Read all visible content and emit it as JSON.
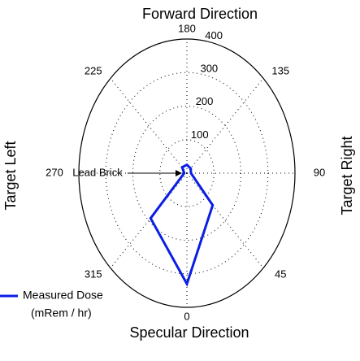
{
  "chart_data": {
    "type": "polar",
    "title": "Forward Direction",
    "bottom_label": "Specular Direction",
    "left_label": "Target Left",
    "right_label": "Target Right",
    "annotation": "Lead Brick",
    "x": [
      0,
      45,
      90,
      135,
      180,
      225,
      270,
      315
    ],
    "xticks": [
      0,
      45,
      90,
      135,
      180,
      225,
      270,
      315
    ],
    "ylim": [
      0,
      400
    ],
    "yticks": [
      100,
      200,
      300,
      400
    ],
    "grid": true,
    "legend": "bottom-left",
    "legend_units": "(mRem / hr)",
    "series": [
      {
        "name": "Measured Dose",
        "color": "#0a1ee6",
        "values": [
          330,
          135,
          15,
          20,
          25,
          25,
          10,
          190
        ]
      }
    ]
  }
}
